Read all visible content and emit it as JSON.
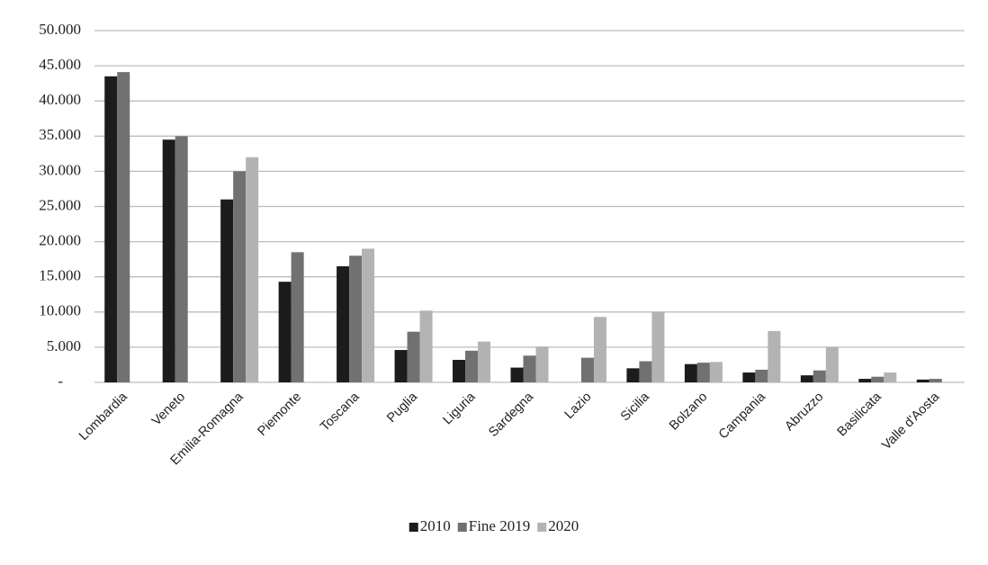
{
  "chart_data": {
    "type": "bar",
    "categories": [
      "Lombardia",
      "Veneto",
      "Emilia-Romagna",
      "Piemonte",
      "Toscana",
      "Puglia",
      "Liguria",
      "Sardegna",
      "Lazio",
      "Sicilia",
      "Bolzano",
      "Campania",
      "Abruzzo",
      "Basilicata",
      "Valle d'Aosta"
    ],
    "series": [
      {
        "name": "2010",
        "color": "#1c1c1c",
        "values": [
          43500,
          34500,
          26000,
          14300,
          16500,
          4600,
          3200,
          2100,
          null,
          2000,
          2600,
          1400,
          1000,
          500,
          400
        ]
      },
      {
        "name": "Fine 2019",
        "color": "#717171",
        "values": [
          44100,
          35000,
          30000,
          18500,
          18000,
          7200,
          4500,
          3800,
          3500,
          3000,
          2800,
          1800,
          1700,
          800,
          500
        ]
      },
      {
        "name": "2020",
        "color": "#b3b3b3",
        "values": [
          null,
          null,
          32000,
          null,
          19000,
          10200,
          5800,
          5100,
          9300,
          10000,
          2900,
          7300,
          5000,
          1400,
          null
        ]
      }
    ],
    "ylim": [
      0,
      50000
    ],
    "yticks": [
      {
        "value": 0,
        "label": "-"
      },
      {
        "value": 5000,
        "label": "5.000"
      },
      {
        "value": 10000,
        "label": "10.000"
      },
      {
        "value": 15000,
        "label": "15.000"
      },
      {
        "value": 20000,
        "label": "20.000"
      },
      {
        "value": 25000,
        "label": "25.000"
      },
      {
        "value": 30000,
        "label": "30.000"
      },
      {
        "value": 35000,
        "label": "35.000"
      },
      {
        "value": 40000,
        "label": "40.000"
      },
      {
        "value": 45000,
        "label": "45.000"
      },
      {
        "value": 50000,
        "label": "50.000"
      }
    ],
    "grid": true,
    "legend": "bottom"
  }
}
